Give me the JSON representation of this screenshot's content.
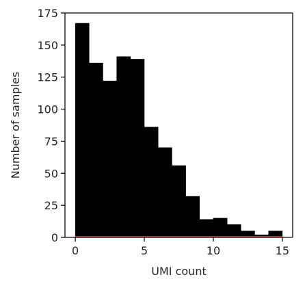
{
  "chart_data": {
    "type": "bar",
    "title": "",
    "xlabel": "UMI count",
    "ylabel": "Number of samples",
    "xlim": [
      -0.75,
      15.75
    ],
    "ylim": [
      0,
      175
    ],
    "bin_edges": [
      0,
      1,
      2,
      3,
      4,
      5,
      6,
      7,
      8,
      9,
      10,
      11,
      12,
      13,
      14,
      15
    ],
    "values": [
      167,
      136,
      122,
      141,
      139,
      86,
      70,
      56,
      32,
      14,
      15,
      10,
      5,
      2,
      5
    ],
    "x_ticks": [
      0,
      5,
      10,
      15
    ],
    "x_tick_labels": [
      "0",
      "5",
      "10",
      "15"
    ],
    "y_ticks": [
      0,
      25,
      50,
      75,
      100,
      125,
      150,
      175
    ],
    "y_tick_labels": [
      "0",
      "25",
      "50",
      "75",
      "100",
      "125",
      "150",
      "175"
    ],
    "bar_color": "#000000",
    "baseline_color": "#c0392b",
    "grid": false,
    "legend": "none"
  }
}
